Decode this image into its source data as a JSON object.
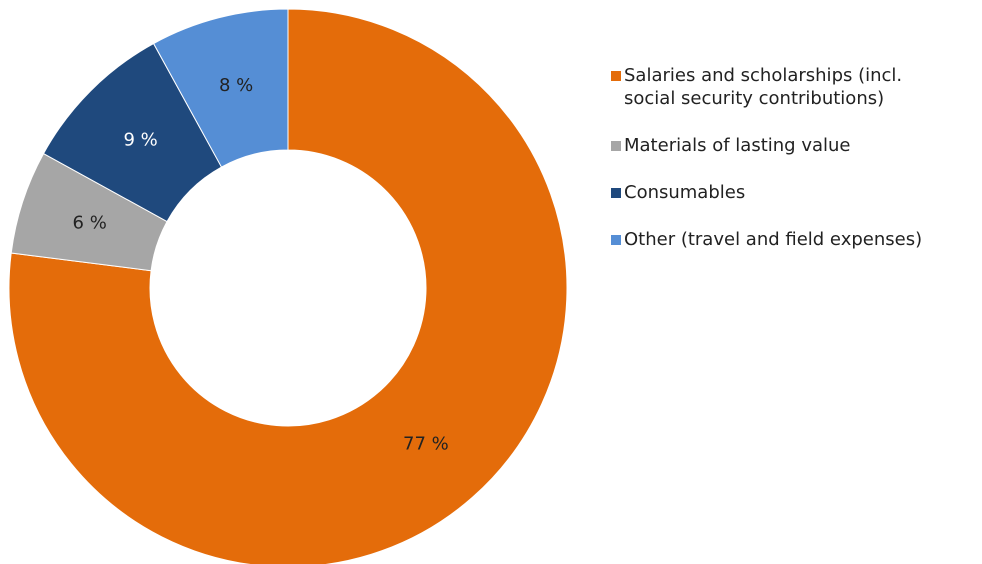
{
  "chart_data": {
    "type": "pie",
    "donut": true,
    "legend_position": "right",
    "series": [
      {
        "name": "Salaries and scholarships (incl. social security contributions)",
        "legend_lines": [
          "Salaries and scholarships (incl.",
          "social security contributions)"
        ],
        "value": 77,
        "label": "77 %",
        "color": "#E46C0A",
        "label_color": "#222222"
      },
      {
        "name": "Materials of lasting value",
        "legend_lines": [
          "Materials of lasting value"
        ],
        "value": 6,
        "label": "6 %",
        "color": "#A6A6A6",
        "label_color": "#222222"
      },
      {
        "name": "Consumables",
        "legend_lines": [
          "Consumables"
        ],
        "value": 9,
        "label": "9 %",
        "color": "#1F497D",
        "label_color": "#FFFFFF"
      },
      {
        "name": "Other (travel and field expenses)",
        "legend_lines": [
          "Other (travel and field expenses)"
        ],
        "value": 8,
        "label": "8 %",
        "color": "#558ED5",
        "label_color": "#222222"
      }
    ]
  }
}
